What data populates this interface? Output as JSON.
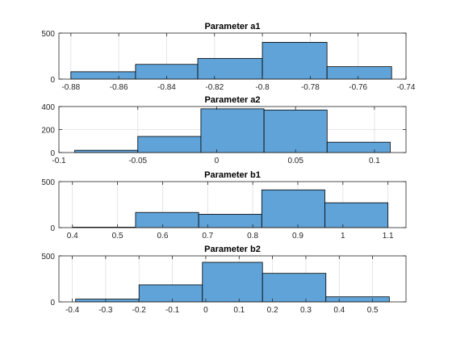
{
  "chart_data": [
    {
      "type": "bar",
      "title": "Parameter a1",
      "xlabel": "",
      "ylabel": "",
      "bin_edges": [
        -0.88,
        -0.853,
        -0.827,
        -0.8,
        -0.773,
        -0.746
      ],
      "values": [
        80,
        160,
        225,
        400,
        135
      ],
      "xlim": [
        -0.885,
        -0.74
      ],
      "ylim": [
        0,
        500
      ],
      "xticks": [
        -0.88,
        -0.86,
        -0.84,
        -0.82,
        -0.8,
        -0.78,
        -0.76,
        -0.74
      ],
      "xtick_labels": [
        "-0.88",
        "-0.86",
        "-0.84",
        "-0.82",
        "-0.8",
        "-0.78",
        "-0.76",
        "-0.74"
      ],
      "yticks": [
        0,
        500
      ],
      "ytick_labels": [
        "0",
        "500"
      ],
      "grid": true
    },
    {
      "type": "bar",
      "title": "Parameter a2",
      "xlabel": "",
      "ylabel": "",
      "bin_edges": [
        -0.09,
        -0.05,
        -0.01,
        0.03,
        0.07,
        0.11
      ],
      "values": [
        20,
        140,
        380,
        370,
        90
      ],
      "xlim": [
        -0.1,
        0.12
      ],
      "ylim": [
        0,
        400
      ],
      "xticks": [
        -0.1,
        -0.05,
        0,
        0.05,
        0.1
      ],
      "xtick_labels": [
        "-0.1",
        "-0.05",
        "0",
        "0.05",
        "0.1"
      ],
      "yticks": [
        0,
        200,
        400
      ],
      "ytick_labels": [
        "0",
        "200",
        "400"
      ],
      "grid": true
    },
    {
      "type": "bar",
      "title": "Parameter b1",
      "xlabel": "",
      "ylabel": "",
      "bin_edges": [
        0.4,
        0.54,
        0.68,
        0.82,
        0.96,
        1.1
      ],
      "values": [
        5,
        165,
        145,
        410,
        270
      ],
      "xlim": [
        0.37,
        1.14
      ],
      "ylim": [
        0,
        500
      ],
      "xticks": [
        0.4,
        0.5,
        0.6,
        0.7,
        0.8,
        0.9,
        1,
        1.1
      ],
      "xtick_labels": [
        "0.4",
        "0.5",
        "0.6",
        "0.7",
        "0.8",
        "0.9",
        "1",
        "1.1"
      ],
      "yticks": [
        0,
        500
      ],
      "ytick_labels": [
        "0",
        "500"
      ],
      "grid": true
    },
    {
      "type": "bar",
      "title": "Parameter b2",
      "xlabel": "",
      "ylabel": "",
      "bin_edges": [
        -0.39,
        -0.2,
        -0.01,
        0.17,
        0.36,
        0.55
      ],
      "values": [
        30,
        185,
        430,
        310,
        55
      ],
      "xlim": [
        -0.44,
        0.6
      ],
      "ylim": [
        0,
        500
      ],
      "xticks": [
        -0.4,
        -0.3,
        -0.2,
        -0.1,
        0,
        0.1,
        0.2,
        0.3,
        0.4,
        0.5
      ],
      "xtick_labels": [
        "-0.4",
        "-0.3",
        "-0.2",
        "-0.1",
        "0",
        "0.1",
        "0.2",
        "0.3",
        "0.4",
        "0.5"
      ],
      "yticks": [
        0,
        500
      ],
      "ytick_labels": [
        "0",
        "500"
      ],
      "grid": true
    }
  ],
  "colors": {
    "bar_fill": "#5fa3d9",
    "bar_edge": "#000000",
    "grid": "#dfdfdf",
    "axis": "#262626"
  }
}
